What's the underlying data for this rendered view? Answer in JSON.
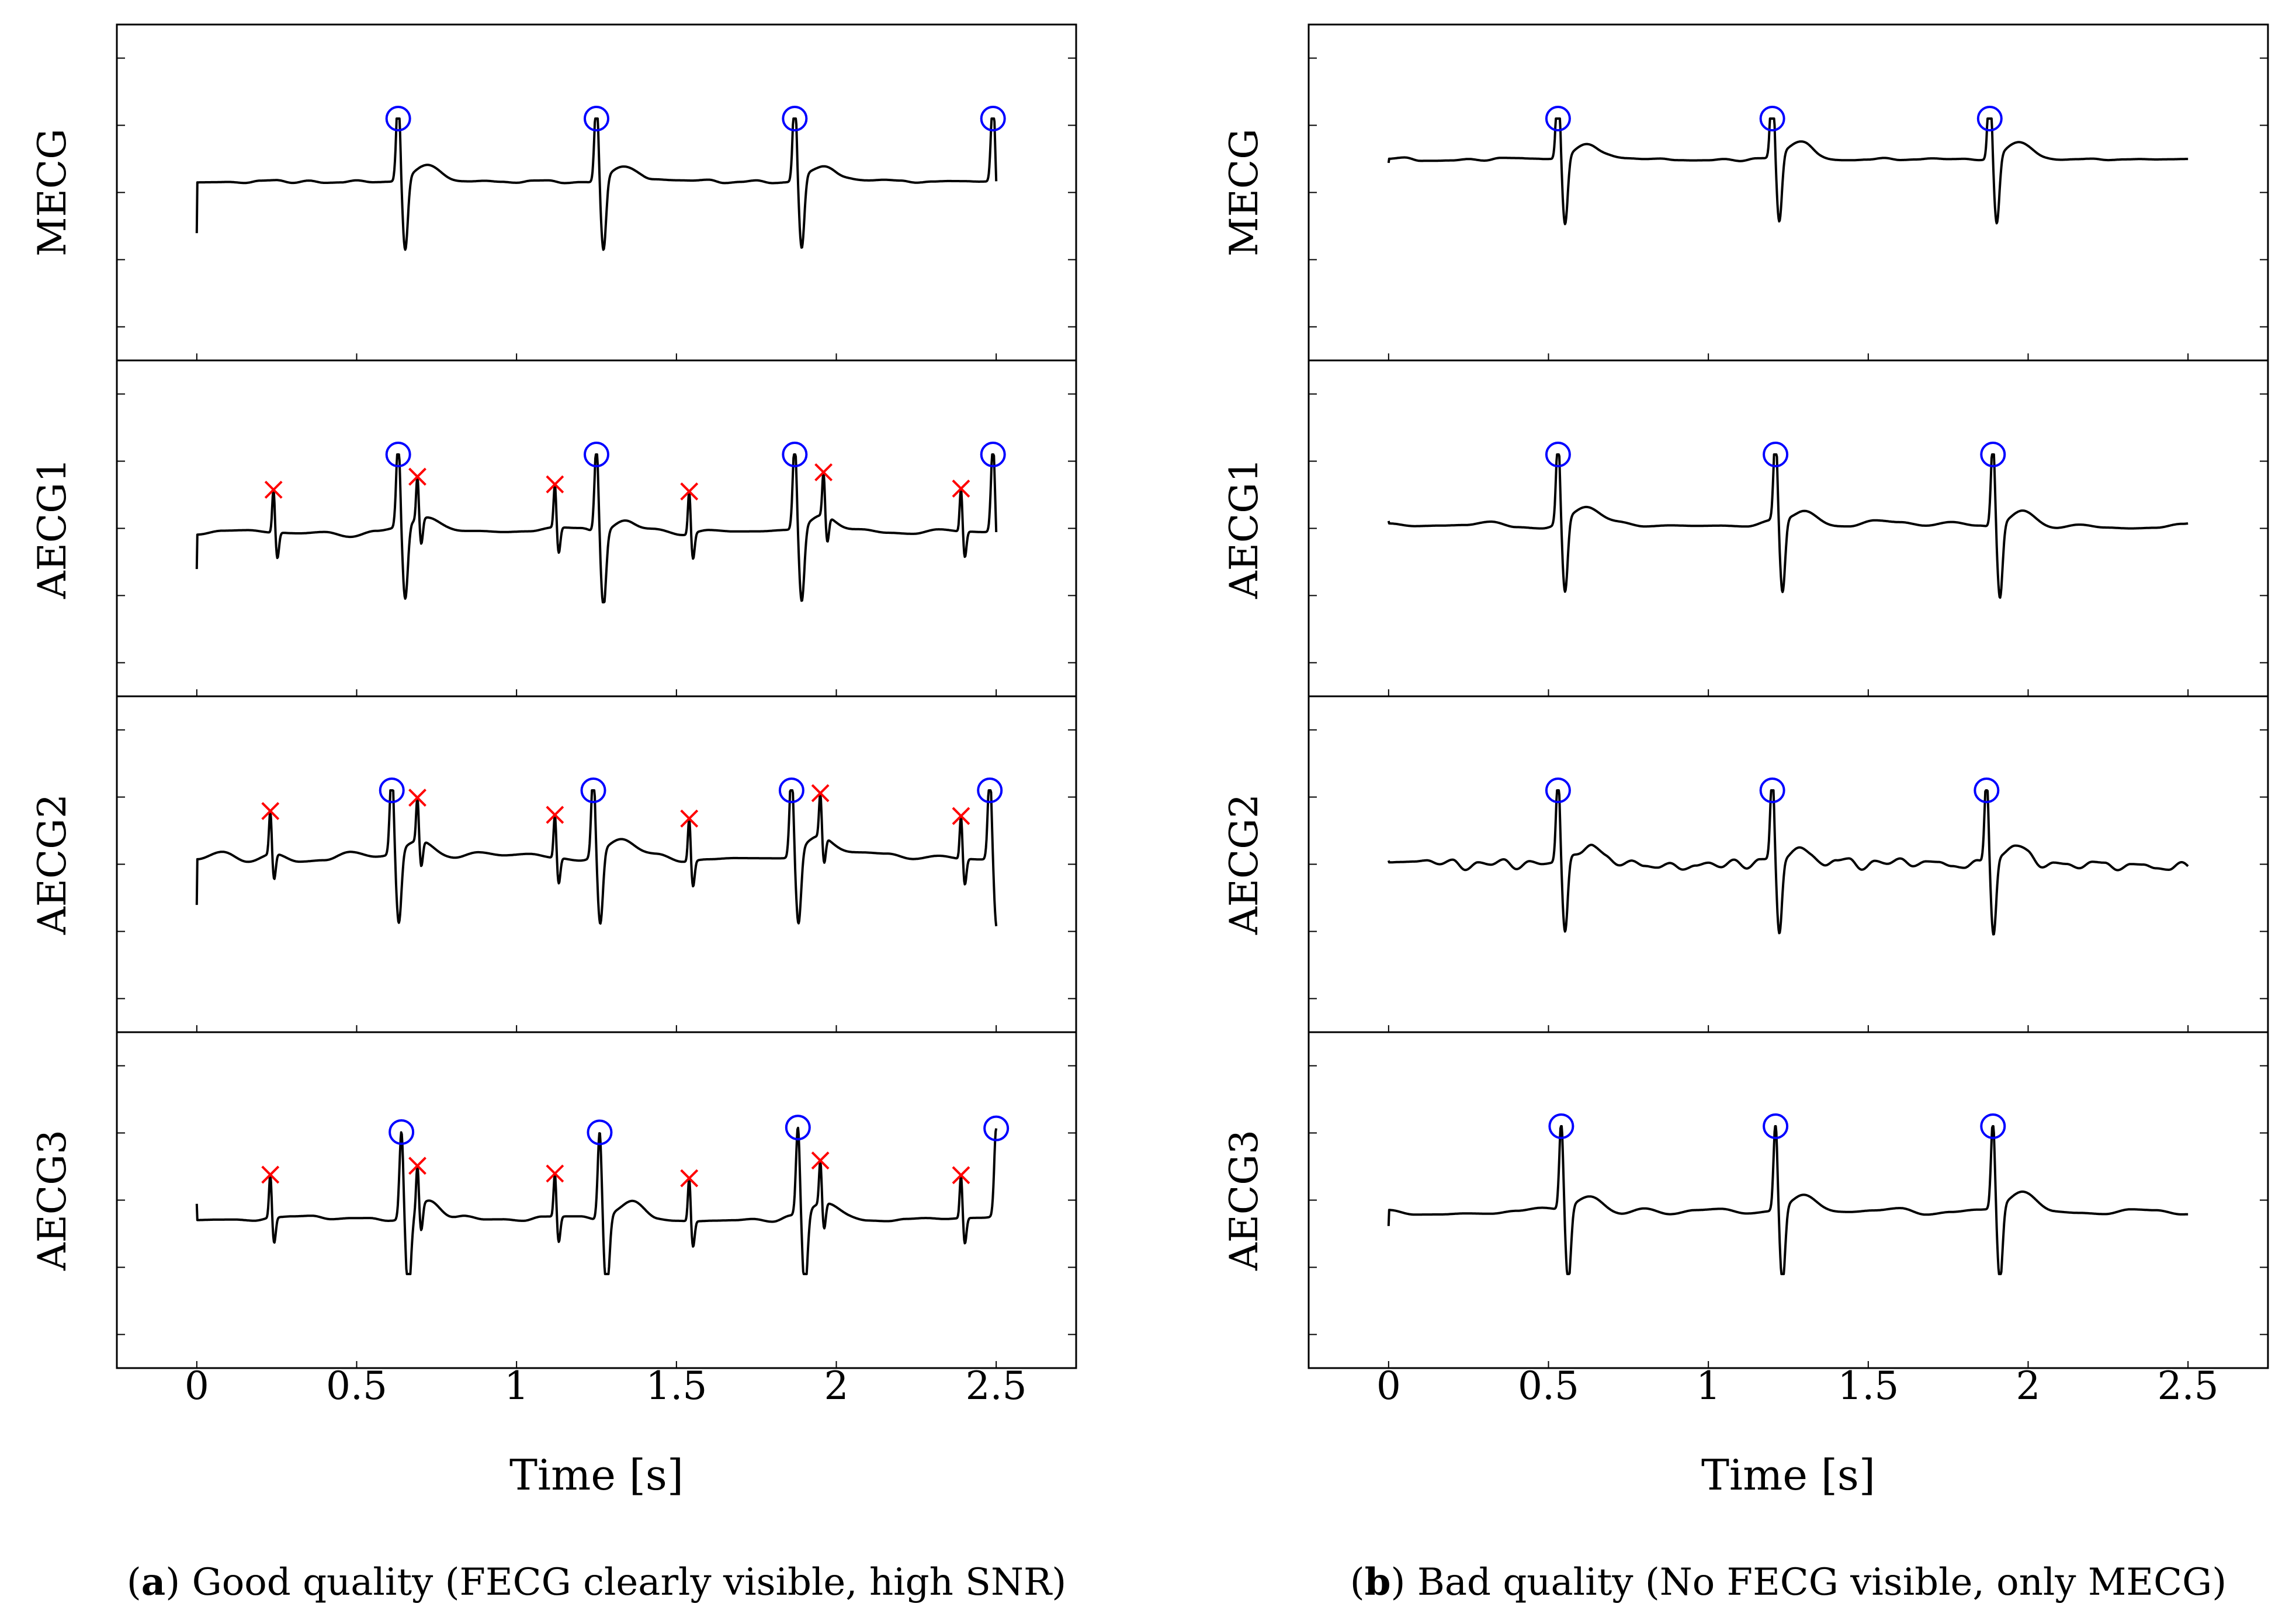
{
  "chart_data": [
    {
      "id": "a",
      "type": "line",
      "caption": {
        "tag": "a",
        "text": " Good quality (FECG clearly visible, high SNR)",
        "open": "(",
        "close": ")"
      },
      "xlabel": "Time [s]",
      "xlim": [
        -0.25,
        2.75
      ],
      "xticks": [
        0,
        0.5,
        1,
        1.5,
        2,
        2.5
      ],
      "xtick_labels": [
        "0",
        "0.5",
        "1",
        "1.5",
        "2",
        "2.5"
      ],
      "colors": {
        "trace": "#000000",
        "maternal_marker": "#0000ff",
        "fetal_marker": "#ff0000"
      },
      "markers": {
        "maternal": "circle",
        "fetal": "cross"
      },
      "series": [
        {
          "name": "MECG",
          "start": -0.55,
          "baseline": 0.15,
          "noise": 0.025,
          "step": 0.05,
          "maternal": [
            0.63,
            1.25,
            1.87,
            2.49
          ],
          "fetal": []
        },
        {
          "name": "AECG1",
          "start": -0.55,
          "baseline": -0.05,
          "noise": 0.07,
          "step": 0.08,
          "maternal": [
            0.63,
            1.25,
            1.87,
            2.49
          ],
          "fetal": [
            0.24,
            0.69,
            1.12,
            1.54,
            1.96,
            2.39
          ]
        },
        {
          "name": "AECG2",
          "start": -0.55,
          "baseline": 0.1,
          "noise": 0.07,
          "step": 0.08,
          "maternal": [
            0.61,
            1.24,
            1.86,
            2.48
          ],
          "fetal": [
            0.23,
            0.69,
            1.12,
            1.54,
            1.95,
            2.39
          ]
        },
        {
          "name": "AECG3",
          "start": -0.05,
          "baseline": -0.25,
          "noise": 0.045,
          "step": 0.06,
          "maternal": [
            0.64,
            1.26,
            1.88,
            2.5
          ],
          "fetal": [
            0.23,
            0.69,
            1.12,
            1.54,
            1.95,
            2.39
          ]
        }
      ]
    },
    {
      "id": "b",
      "type": "line",
      "caption": {
        "tag": "b",
        "text": " Bad quality (No FECG visible, only MECG)",
        "open": "(",
        "close": ")"
      },
      "xlabel": "Time [s]",
      "xlim": [
        -0.25,
        2.75
      ],
      "xticks": [
        0,
        0.5,
        1,
        1.5,
        2,
        2.5
      ],
      "xtick_labels": [
        "0",
        "0.5",
        "1",
        "1.5",
        "2",
        "2.5"
      ],
      "colors": {
        "trace": "#000000",
        "maternal_marker": "#0000ff",
        "fetal_marker": "#ff0000"
      },
      "markers": {
        "maternal": "circle",
        "fetal": "cross"
      },
      "series": [
        {
          "name": "MECG",
          "start": 0.4,
          "baseline": 0.45,
          "noise": 0.025,
          "step": 0.05,
          "maternal": [
            0.53,
            1.2,
            1.88
          ],
          "fetal": []
        },
        {
          "name": "AECG1",
          "start": 0.1,
          "baseline": 0.05,
          "noise": 0.06,
          "step": 0.08,
          "maternal": [
            0.53,
            1.21,
            1.89
          ],
          "fetal": []
        },
        {
          "name": "AECG2",
          "start": 0.05,
          "baseline": 0.0,
          "noise": 0.08,
          "step": 0.04,
          "maternal": [
            0.53,
            1.2,
            1.87
          ],
          "fetal": []
        },
        {
          "name": "AECG3",
          "start": -0.35,
          "baseline": -0.15,
          "noise": 0.05,
          "step": 0.08,
          "maternal": [
            0.54,
            1.21,
            1.89
          ],
          "fetal": []
        }
      ]
    }
  ]
}
